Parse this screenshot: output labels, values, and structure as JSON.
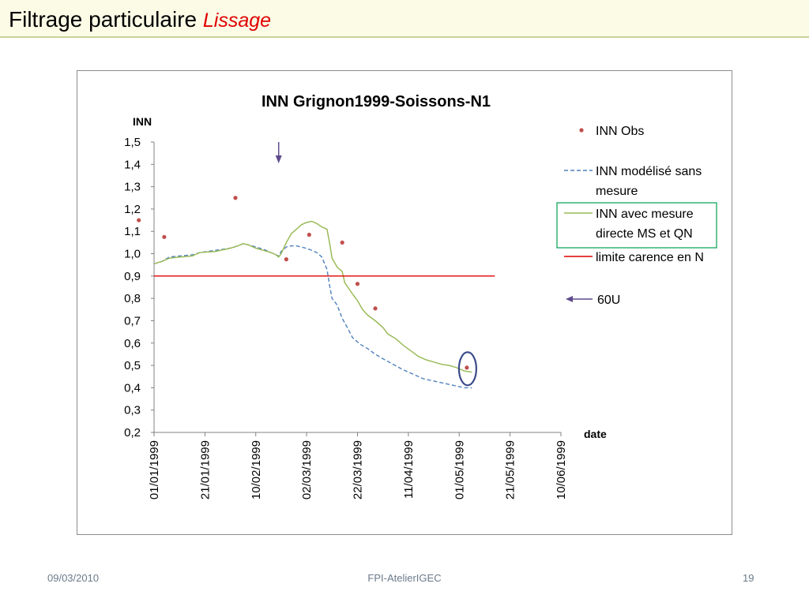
{
  "slide": {
    "title": "Filtrage particulaire",
    "title_emphasis": "Lissage",
    "footer_date": "09/03/2010",
    "footer_center": "FPI-AtelierIGEC",
    "page_number": "19"
  },
  "colors": {
    "obs": "#c0504d",
    "model_no_measure": "#4f81bd",
    "model_with_measure": "#9bbb59",
    "threshold": "#e00000",
    "arrow": "#5f4b8b",
    "highlight_box": "#00a050",
    "circle": "#3a4a8a"
  },
  "chart_data": {
    "type": "line",
    "title": "INN Grignon1999-Soissons-N1",
    "ylabel": "INN",
    "xlabel": "date",
    "ylim": [
      0.2,
      1.5
    ],
    "y_ticks": [
      "0,2",
      "0,3",
      "0,4",
      "0,5",
      "0,6",
      "0,7",
      "0,8",
      "0,9",
      "1,0",
      "1,1",
      "1,2",
      "1,3",
      "1,4",
      "1,5"
    ],
    "x_ticks": [
      "01/01/1999",
      "21/01/1999",
      "10/02/1999",
      "02/03/1999",
      "22/03/1999",
      "11/04/1999",
      "01/05/1999",
      "21/05/1999",
      "10/06/1999"
    ],
    "x_range_days": [
      0,
      160
    ],
    "legend": {
      "obs": "INN Obs",
      "model_no_measure_line1": "INN modélisé sans",
      "model_no_measure_line2": "mesure",
      "model_with_measure_line1": "INN avec mesure",
      "model_with_measure_line2": "directe MS et QN",
      "threshold": "limite carence en N",
      "arrow": "60U"
    },
    "series": [
      {
        "name": "INN Obs",
        "kind": "scatter",
        "points": [
          [
            -6,
            1.15
          ],
          [
            4,
            1.075
          ],
          [
            32,
            1.25
          ],
          [
            52,
            0.975
          ],
          [
            61,
            1.085
          ],
          [
            74,
            1.05
          ],
          [
            80,
            0.865
          ],
          [
            87,
            0.755
          ],
          [
            123,
            0.49
          ]
        ]
      },
      {
        "name": "INN modélisé sans mesure",
        "kind": "dashed",
        "points": [
          [
            0,
            0.955
          ],
          [
            3,
            0.965
          ],
          [
            6,
            0.985
          ],
          [
            10,
            0.99
          ],
          [
            15,
            0.995
          ],
          [
            18,
            1.005
          ],
          [
            24,
            1.015
          ],
          [
            30,
            1.025
          ],
          [
            33,
            1.035
          ],
          [
            35,
            1.045
          ],
          [
            37,
            1.04
          ],
          [
            40,
            1.03
          ],
          [
            43,
            1.02
          ],
          [
            46,
            1.005
          ],
          [
            48,
            0.995
          ],
          [
            49,
            0.99
          ],
          [
            50,
            1.01
          ],
          [
            52,
            1.03
          ],
          [
            54,
            1.035
          ],
          [
            56,
            1.035
          ],
          [
            58,
            1.03
          ],
          [
            61,
            1.02
          ],
          [
            64,
            1.005
          ],
          [
            66,
            0.985
          ],
          [
            68,
            0.93
          ],
          [
            69,
            0.86
          ],
          [
            70,
            0.8
          ],
          [
            72,
            0.77
          ],
          [
            74,
            0.71
          ],
          [
            76,
            0.67
          ],
          [
            78,
            0.625
          ],
          [
            81,
            0.595
          ],
          [
            84,
            0.575
          ],
          [
            87,
            0.55
          ],
          [
            90,
            0.53
          ],
          [
            94,
            0.505
          ],
          [
            98,
            0.48
          ],
          [
            102,
            0.46
          ],
          [
            106,
            0.44
          ],
          [
            110,
            0.43
          ],
          [
            114,
            0.42
          ],
          [
            118,
            0.41
          ],
          [
            122,
            0.4
          ],
          [
            125,
            0.4
          ]
        ]
      },
      {
        "name": "INN avec mesure directe MS et QN",
        "kind": "line",
        "points": [
          [
            0,
            0.955
          ],
          [
            3,
            0.965
          ],
          [
            6,
            0.98
          ],
          [
            10,
            0.985
          ],
          [
            15,
            0.99
          ],
          [
            18,
            1.005
          ],
          [
            24,
            1.01
          ],
          [
            30,
            1.025
          ],
          [
            33,
            1.035
          ],
          [
            35,
            1.045
          ],
          [
            37,
            1.04
          ],
          [
            40,
            1.025
          ],
          [
            43,
            1.015
          ],
          [
            46,
            1.005
          ],
          [
            48,
            0.995
          ],
          [
            49,
            0.985
          ],
          [
            50,
            1.0
          ],
          [
            52,
            1.05
          ],
          [
            54,
            1.09
          ],
          [
            56,
            1.11
          ],
          [
            58,
            1.13
          ],
          [
            60,
            1.14
          ],
          [
            62,
            1.145
          ],
          [
            64,
            1.135
          ],
          [
            66,
            1.12
          ],
          [
            68,
            1.11
          ],
          [
            69,
            1.05
          ],
          [
            70,
            0.98
          ],
          [
            72,
            0.94
          ],
          [
            74,
            0.92
          ],
          [
            75,
            0.87
          ],
          [
            78,
            0.82
          ],
          [
            80,
            0.79
          ],
          [
            82,
            0.75
          ],
          [
            84,
            0.725
          ],
          [
            87,
            0.7
          ],
          [
            90,
            0.67
          ],
          [
            92,
            0.64
          ],
          [
            95,
            0.62
          ],
          [
            98,
            0.59
          ],
          [
            101,
            0.565
          ],
          [
            104,
            0.54
          ],
          [
            107,
            0.525
          ],
          [
            110,
            0.515
          ],
          [
            113,
            0.505
          ],
          [
            116,
            0.5
          ],
          [
            119,
            0.49
          ],
          [
            122,
            0.475
          ],
          [
            125,
            0.47
          ]
        ]
      },
      {
        "name": "limite carence en N",
        "kind": "threshold",
        "points": [
          [
            0,
            0.9
          ],
          [
            134,
            0.9
          ]
        ]
      }
    ],
    "annotations": {
      "arrow_day": 49,
      "circle_day": 123,
      "circle_value": 0.485
    }
  }
}
